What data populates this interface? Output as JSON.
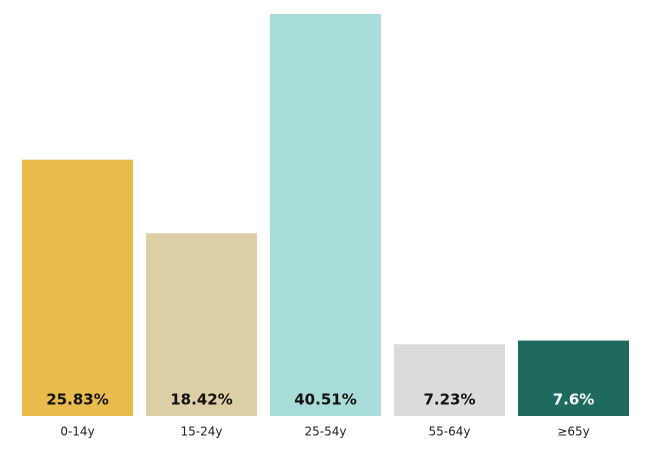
{
  "chart_data": {
    "type": "bar",
    "categories": [
      "0-14y",
      "15-24y",
      "25-54y",
      "55-64y",
      "≥65y"
    ],
    "values": [
      25.83,
      18.42,
      40.51,
      7.23,
      7.6
    ],
    "value_labels": [
      "25.83%",
      "18.42%",
      "40.51%",
      "7.23%",
      "7.6%"
    ],
    "colors": [
      "#e9bb4d",
      "#ddcfa5",
      "#a8dcd9",
      "#dbdbdb",
      "#1e6a5e"
    ]
  }
}
